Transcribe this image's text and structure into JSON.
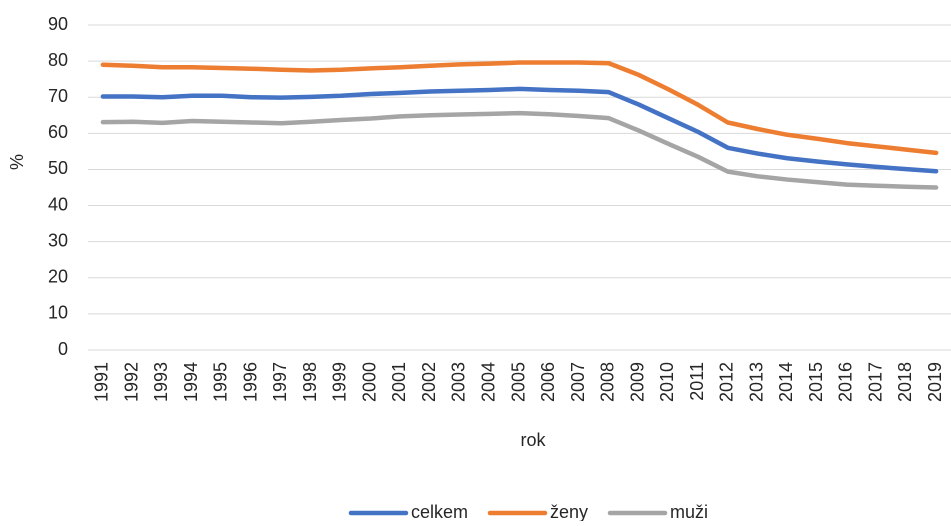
{
  "chart_data": {
    "type": "line",
    "categories": [
      "1991",
      "1992",
      "1993",
      "1994",
      "1995",
      "1996",
      "1997",
      "1998",
      "1999",
      "2000",
      "2001",
      "2002",
      "2003",
      "2004",
      "2005",
      "2006",
      "2007",
      "2008",
      "2009",
      "2010",
      "2011",
      "2012",
      "2013",
      "2014",
      "2015",
      "2016",
      "2017",
      "2018",
      "2019"
    ],
    "series": [
      {
        "name": "celkem",
        "color": "#4472c4",
        "values": [
          70.2,
          70.2,
          70.0,
          70.4,
          70.4,
          70.0,
          69.9,
          70.1,
          70.4,
          70.9,
          71.2,
          71.6,
          71.8,
          72.0,
          72.3,
          72.0,
          71.8,
          71.4,
          68.0,
          64.2,
          60.4,
          56.0,
          54.4,
          53.1,
          52.2,
          51.4,
          50.7,
          50.1,
          49.5
        ]
      },
      {
        "name": "ženy",
        "color": "#ed7d31",
        "values": [
          79.0,
          78.7,
          78.3,
          78.3,
          78.1,
          77.9,
          77.6,
          77.4,
          77.6,
          78.0,
          78.3,
          78.7,
          79.1,
          79.3,
          79.6,
          79.6,
          79.6,
          79.4,
          76.2,
          72.2,
          67.9,
          63.0,
          61.2,
          59.6,
          58.5,
          57.3,
          56.4,
          55.5,
          54.6
        ]
      },
      {
        "name": "muži",
        "color": "#a5a5a5",
        "values": [
          63.1,
          63.2,
          62.9,
          63.4,
          63.2,
          63.0,
          62.8,
          63.2,
          63.7,
          64.1,
          64.7,
          65.0,
          65.2,
          65.4,
          65.6,
          65.3,
          64.8,
          64.2,
          60.8,
          57.1,
          53.5,
          49.4,
          48.1,
          47.2,
          46.5,
          45.8,
          45.5,
          45.2,
          45.0
        ]
      }
    ],
    "ylim": [
      0,
      90
    ],
    "yticks": [
      0,
      10,
      20,
      30,
      40,
      50,
      60,
      70,
      80,
      90
    ],
    "x_label": "rok",
    "y_label": "%",
    "grid": true,
    "legend": "bottom"
  }
}
